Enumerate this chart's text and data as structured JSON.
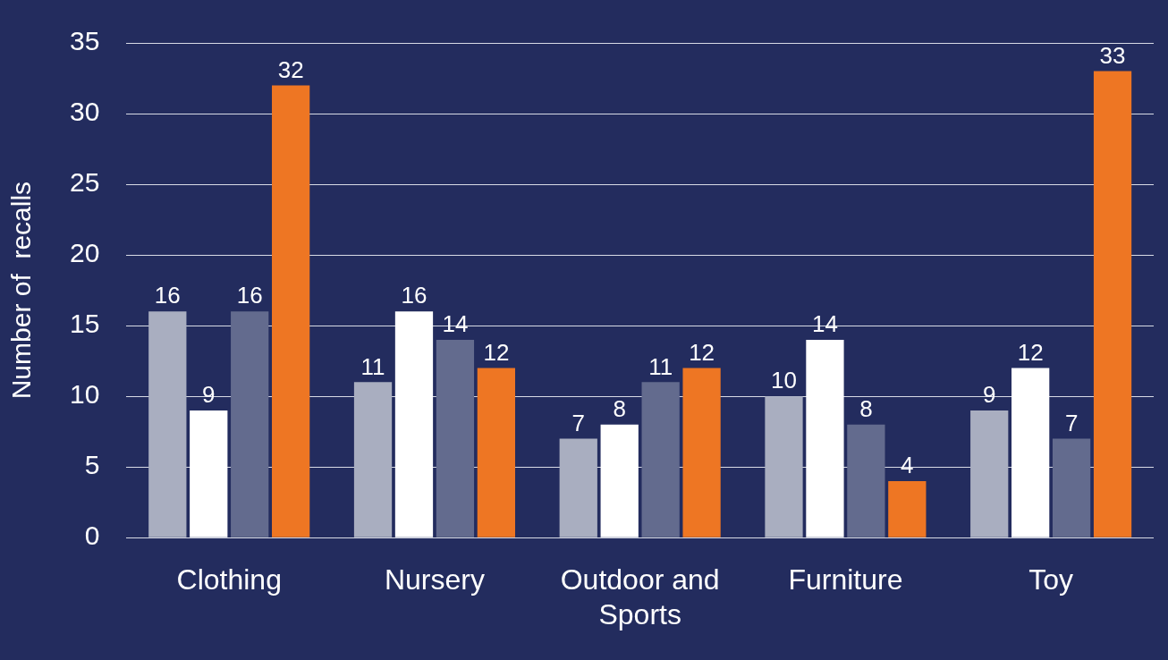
{
  "chart_data": {
    "type": "bar",
    "ylabel": "Number of  recalls",
    "categories": [
      "Clothing",
      "Nursery",
      "Outdoor and Sports",
      "Furniture",
      "Toy"
    ],
    "series": [
      {
        "color": "#a9aec0",
        "values": [
          16,
          11,
          7,
          10,
          9
        ]
      },
      {
        "color": "#ffffff",
        "values": [
          9,
          16,
          8,
          14,
          12
        ]
      },
      {
        "color": "#636b8e",
        "values": [
          16,
          14,
          11,
          8,
          7
        ]
      },
      {
        "color": "#ee7623",
        "values": [
          32,
          12,
          12,
          4,
          33
        ]
      }
    ],
    "ylim": [
      0,
      35
    ],
    "yticks": [
      0,
      5,
      10,
      15,
      20,
      25,
      30,
      35
    ],
    "grid": "y",
    "data_labels": true,
    "legend": false
  }
}
